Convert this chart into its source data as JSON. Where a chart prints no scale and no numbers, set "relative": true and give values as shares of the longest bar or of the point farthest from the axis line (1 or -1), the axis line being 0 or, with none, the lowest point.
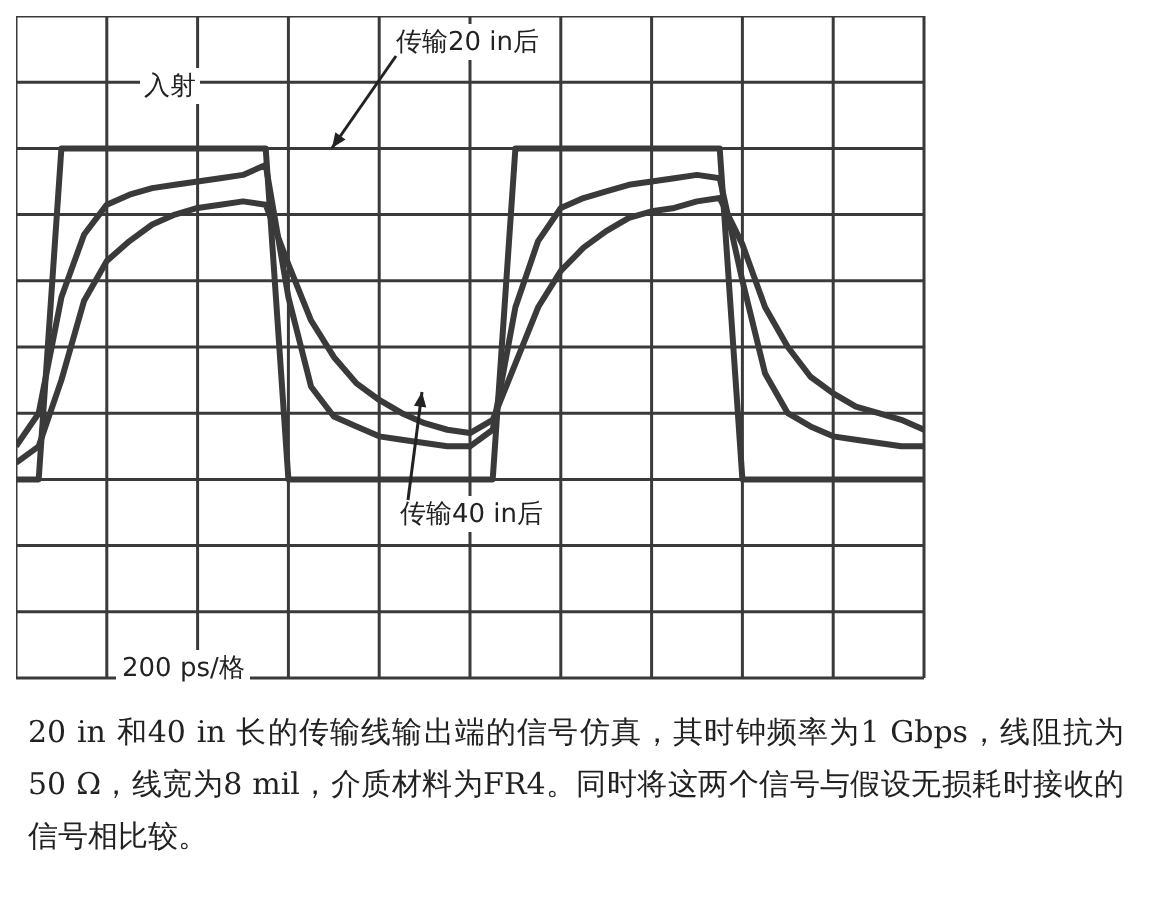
{
  "chart_data": {
    "type": "line",
    "relative": true,
    "categories": [
      null,
      null,
      null,
      null,
      null,
      null,
      null,
      null,
      null,
      null,
      null,
      null,
      null,
      null,
      null,
      null,
      null,
      null,
      null,
      null,
      null,
      null,
      null,
      null,
      null,
      null,
      null,
      null,
      null,
      null,
      null,
      null,
      null,
      null,
      null,
      null,
      null,
      null,
      null,
      null,
      null
    ],
    "grid": true,
    "marker": "none",
    "line_style": "solid",
    "series": [
      {
        "name": "入射",
        "color": "#3a3a3a",
        "values": [
          0,
          0,
          1,
          1,
          1,
          1,
          1,
          1,
          1,
          1,
          1,
          1,
          0,
          0,
          0,
          0,
          0,
          0,
          0,
          0,
          0,
          0,
          1,
          1,
          1,
          1,
          1,
          1,
          1,
          1,
          1,
          1,
          0,
          0,
          0,
          0,
          0,
          0,
          0,
          0,
          0
        ]
      },
      {
        "name": "传输20 in后",
        "color": "#3a3a3a",
        "values": [
          0.1,
          0.2,
          0.55,
          0.74,
          0.83,
          0.86,
          0.88,
          0.89,
          0.9,
          0.91,
          0.92,
          0.95,
          0.55,
          0.28,
          0.19,
          0.16,
          0.13,
          0.12,
          0.11,
          0.1,
          0.1,
          0.15,
          0.52,
          0.72,
          0.82,
          0.85,
          0.87,
          0.89,
          0.9,
          0.91,
          0.92,
          0.91,
          0.6,
          0.32,
          0.2,
          0.16,
          0.13,
          0.12,
          0.11,
          0.1,
          0.1
        ]
      },
      {
        "name": "传输40 in后",
        "color": "#3a3a3a",
        "values": [
          0.05,
          0.1,
          0.3,
          0.54,
          0.66,
          0.72,
          0.77,
          0.8,
          0.82,
          0.83,
          0.84,
          0.83,
          0.65,
          0.48,
          0.37,
          0.29,
          0.24,
          0.2,
          0.17,
          0.15,
          0.14,
          0.18,
          0.35,
          0.52,
          0.63,
          0.7,
          0.75,
          0.79,
          0.81,
          0.82,
          0.84,
          0.85,
          0.71,
          0.52,
          0.4,
          0.31,
          0.26,
          0.22,
          0.2,
          0.18,
          0.15
        ]
      }
    ],
    "annotations": [
      "200 ps/格",
      "20 in 和40 in 长的传输线输出端的信号仿真，其时钟频率为1 Gbps，线阻抗为50 Ω，线宽为8 mil，介质材料为FR4。同时将这两个信号与假设无损耗时接收的信号相比较。"
    ]
  }
}
